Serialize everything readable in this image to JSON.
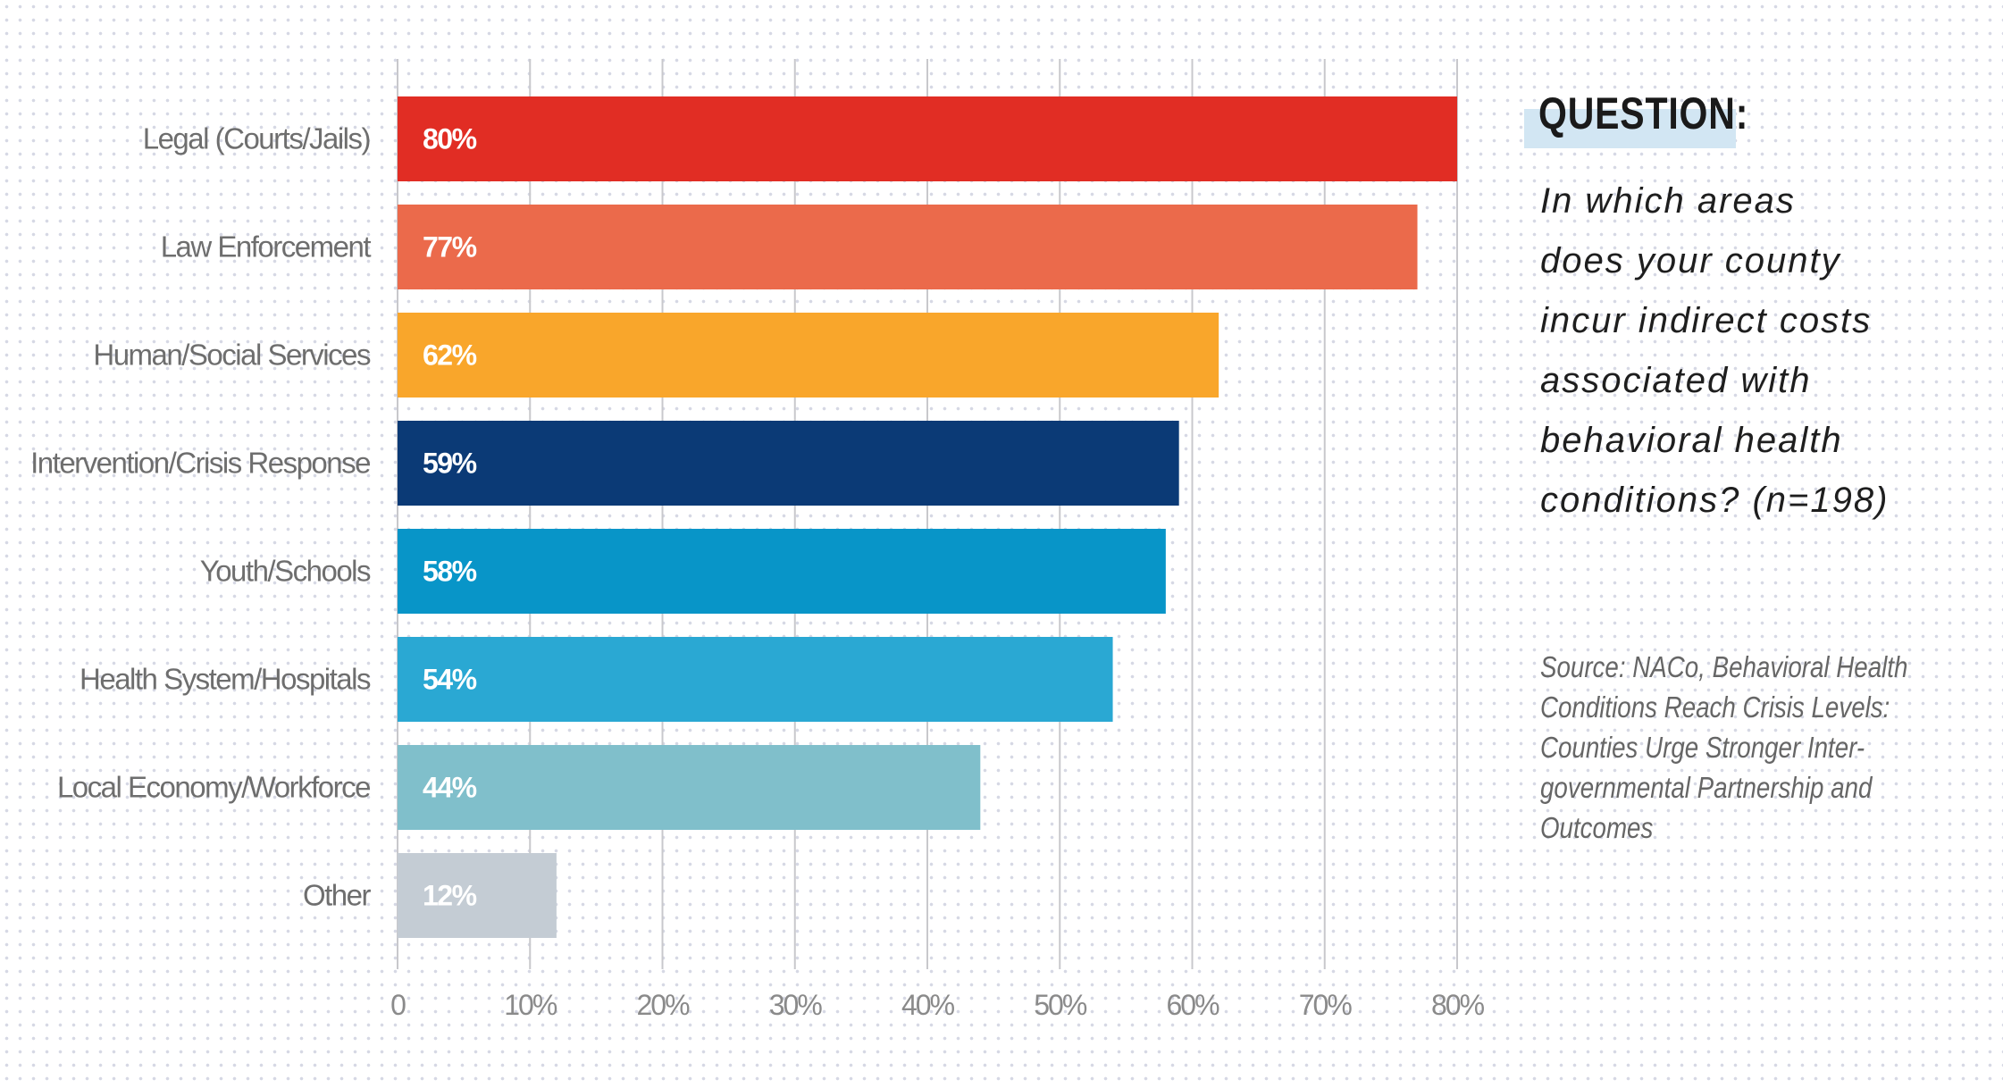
{
  "chart_data": {
    "type": "bar",
    "orientation": "horizontal",
    "categories": [
      "Legal (Courts/Jails)",
      "Law Enforcement",
      "Human/Social Services",
      "Intervention/Crisis Response",
      "Youth/Schools",
      "Health System/Hospitals",
      "Local Economy/Workforce",
      "Other"
    ],
    "values": [
      80,
      77,
      62,
      59,
      58,
      54,
      44,
      12
    ],
    "data_labels": [
      "80%",
      "77%",
      "62%",
      "59%",
      "58%",
      "54%",
      "44%",
      "12%"
    ],
    "colors": [
      "#e12d24",
      "#eb6a4b",
      "#f9a62b",
      "#0b3a76",
      "#0895c8",
      "#2aa8d3",
      "#80bfcb",
      "#c4ccd4"
    ],
    "xlim": [
      0,
      80
    ],
    "x_ticks": [
      0,
      10,
      20,
      30,
      40,
      50,
      60,
      70,
      80
    ],
    "x_tick_labels": [
      "0",
      "10%",
      "20%",
      "30%",
      "40%",
      "50%",
      "60%",
      "70%",
      "80%"
    ],
    "xlabel": "",
    "ylabel": "",
    "grid": "vertical"
  },
  "question": {
    "title": "QUESTION:",
    "lines": [
      "In which areas",
      "does your county",
      "incur indirect costs",
      "associated with",
      "behavioral health",
      "conditions? (n=198)"
    ]
  },
  "source": {
    "lines": [
      "Source: NACo, Behavioral Health",
      "Conditions Reach Crisis Levels:",
      "Counties Urge Stronger Inter-",
      "governmental Partnership and",
      "Outcomes"
    ]
  }
}
